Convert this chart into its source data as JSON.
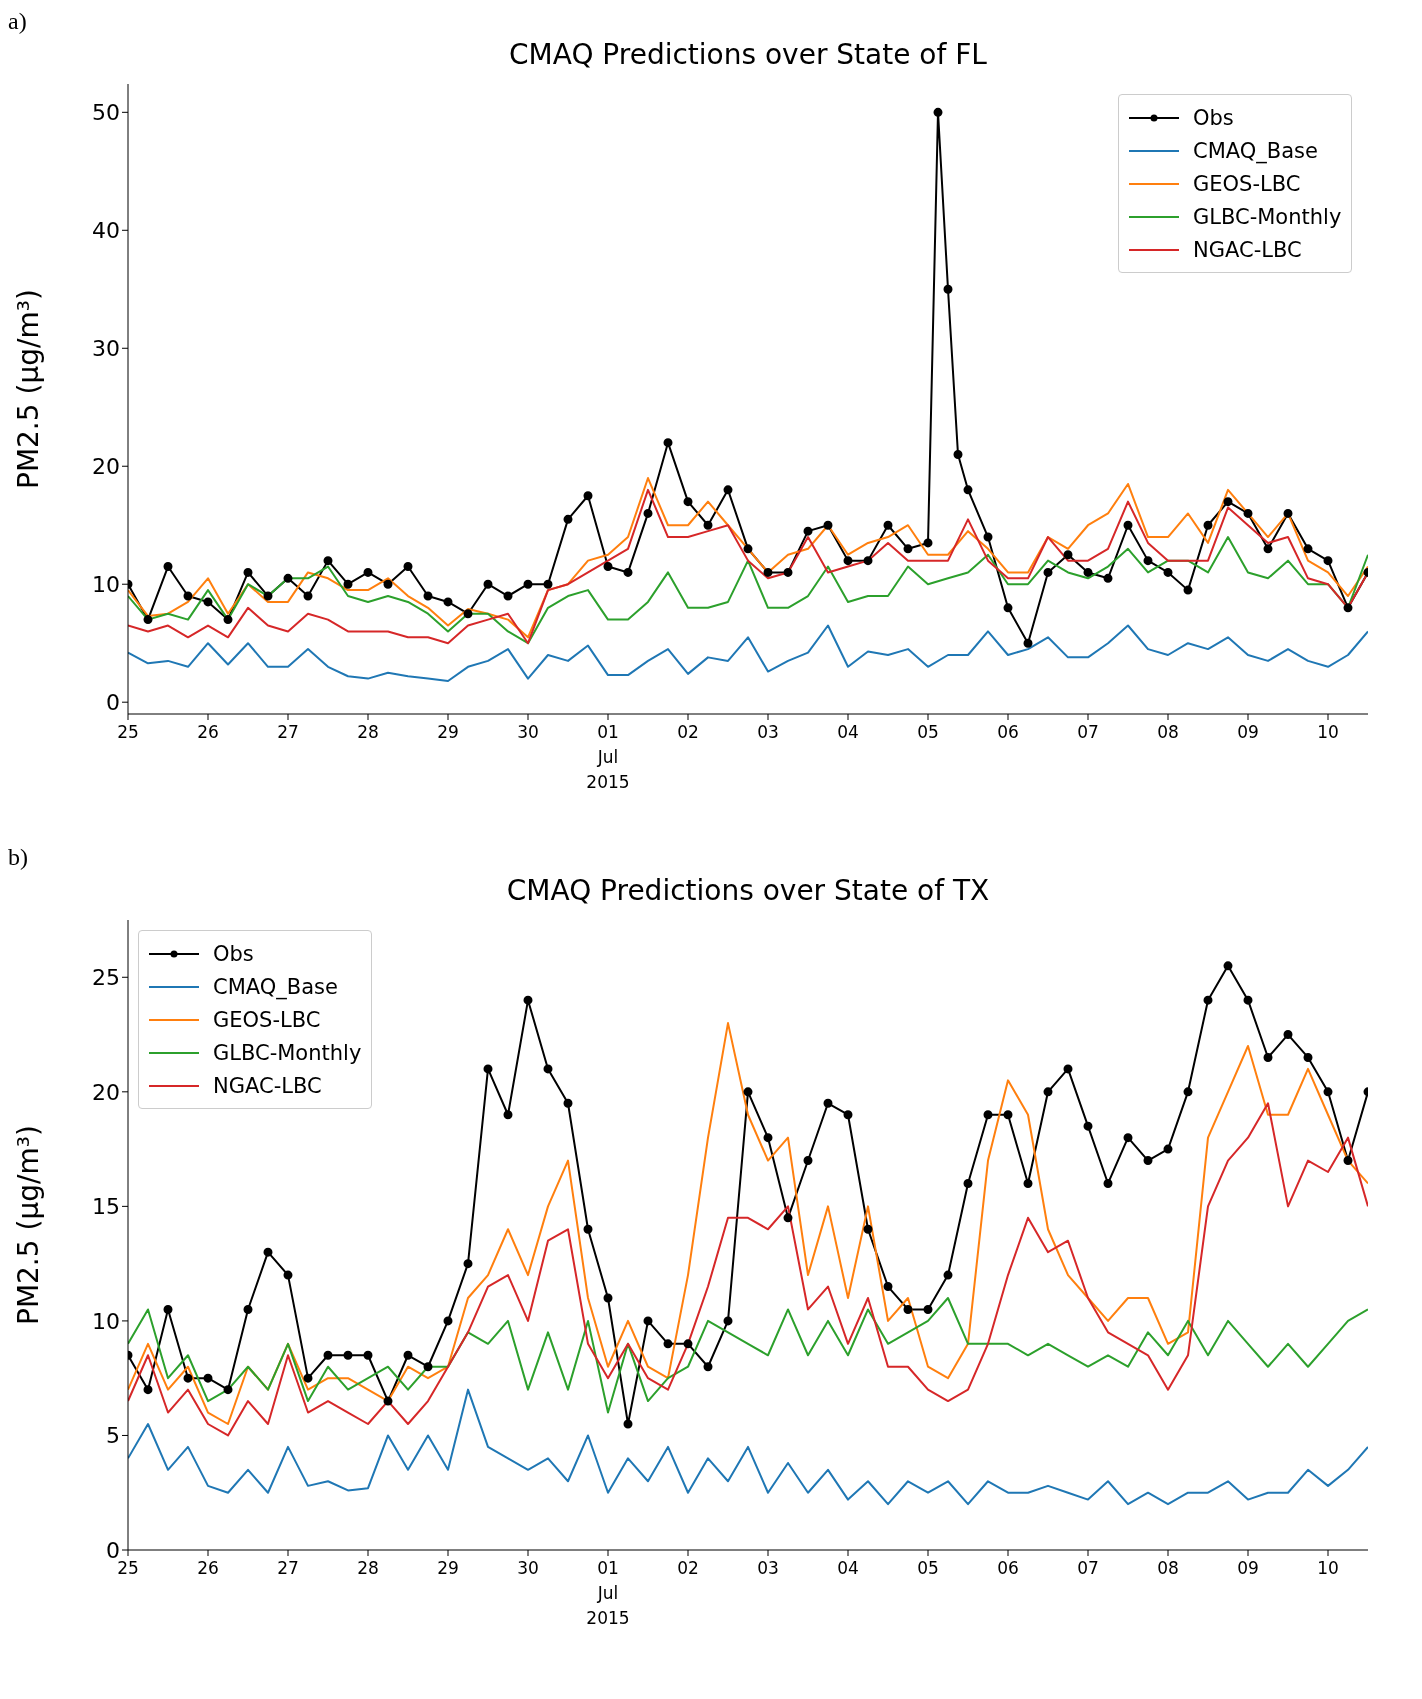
{
  "chart_data": [
    {
      "type": "line",
      "title": "CMAQ Predictions over State of FL",
      "ylabel": "PM2.5 (μg/m³)",
      "annotations": [
        "a)"
      ],
      "legend": "top right",
      "grid": false,
      "xlim": [
        "2015-06-25T00:00",
        "2015-07-10T12:00"
      ],
      "ylim": [
        -1,
        52.4
      ],
      "yticks": [
        0,
        10,
        20,
        30,
        40,
        50
      ],
      "xticks": [
        {
          "value": "2015-06-25",
          "label": "25"
        },
        {
          "value": "2015-06-26",
          "label": "26"
        },
        {
          "value": "2015-06-27",
          "label": "27"
        },
        {
          "value": "2015-06-28",
          "label": "28"
        },
        {
          "value": "2015-06-29",
          "label": "29"
        },
        {
          "value": "2015-06-30",
          "label": "30"
        },
        {
          "value": "2015-07-01",
          "label": "01\nJul\n2015"
        },
        {
          "value": "2015-07-02",
          "label": "02"
        },
        {
          "value": "2015-07-03",
          "label": "03"
        },
        {
          "value": "2015-07-04",
          "label": "04"
        },
        {
          "value": "2015-07-05",
          "label": "05"
        },
        {
          "value": "2015-07-06",
          "label": "06"
        },
        {
          "value": "2015-07-07",
          "label": "07"
        },
        {
          "value": "2015-07-08",
          "label": "08"
        },
        {
          "value": "2015-07-09",
          "label": "09"
        },
        {
          "value": "2015-07-10",
          "label": "10"
        }
      ],
      "x": [
        "2015-06-25T00:00",
        "2015-06-25T06:00",
        "2015-06-25T12:00",
        "2015-06-25T18:00",
        "2015-06-26T00:00",
        "2015-06-26T06:00",
        "2015-06-26T12:00",
        "2015-06-26T18:00",
        "2015-06-27T00:00",
        "2015-06-27T06:00",
        "2015-06-27T12:00",
        "2015-06-27T18:00",
        "2015-06-28T00:00",
        "2015-06-28T06:00",
        "2015-06-28T12:00",
        "2015-06-28T18:00",
        "2015-06-29T00:00",
        "2015-06-29T06:00",
        "2015-06-29T12:00",
        "2015-06-29T18:00",
        "2015-06-30T00:00",
        "2015-06-30T06:00",
        "2015-06-30T12:00",
        "2015-06-30T18:00",
        "2015-07-01T00:00",
        "2015-07-01T06:00",
        "2015-07-01T12:00",
        "2015-07-01T18:00",
        "2015-07-02T00:00",
        "2015-07-02T06:00",
        "2015-07-02T12:00",
        "2015-07-02T18:00",
        "2015-07-03T00:00",
        "2015-07-03T06:00",
        "2015-07-03T12:00",
        "2015-07-03T18:00",
        "2015-07-04T00:00",
        "2015-07-04T06:00",
        "2015-07-04T12:00",
        "2015-07-04T18:00",
        "2015-07-05T00:00",
        "2015-07-05T06:00",
        "2015-07-05T12:00",
        "2015-07-05T18:00",
        "2015-07-06T00:00",
        "2015-07-06T06:00",
        "2015-07-06T12:00",
        "2015-07-06T18:00",
        "2015-07-07T00:00",
        "2015-07-07T06:00",
        "2015-07-07T12:00",
        "2015-07-07T18:00",
        "2015-07-08T00:00",
        "2015-07-08T06:00",
        "2015-07-08T12:00",
        "2015-07-08T18:00",
        "2015-07-09T00:00",
        "2015-07-09T06:00",
        "2015-07-09T12:00",
        "2015-07-09T18:00",
        "2015-07-10T00:00",
        "2015-07-10T06:00",
        "2015-07-10T12:00"
      ],
      "series": [
        {
          "name": "Obs",
          "color": "#000000",
          "marker": "circle",
          "x": [
            "2015-06-25T00:00",
            "2015-06-25T06:00",
            "2015-06-25T12:00",
            "2015-06-25T18:00",
            "2015-06-26T00:00",
            "2015-06-26T06:00",
            "2015-06-26T12:00",
            "2015-06-26T18:00",
            "2015-06-27T00:00",
            "2015-06-27T06:00",
            "2015-06-27T12:00",
            "2015-06-27T18:00",
            "2015-06-28T00:00",
            "2015-06-28T06:00",
            "2015-06-28T12:00",
            "2015-06-28T18:00",
            "2015-06-29T00:00",
            "2015-06-29T06:00",
            "2015-06-29T12:00",
            "2015-06-29T18:00",
            "2015-06-30T00:00",
            "2015-06-30T06:00",
            "2015-06-30T12:00",
            "2015-06-30T18:00",
            "2015-07-01T00:00",
            "2015-07-01T06:00",
            "2015-07-01T12:00",
            "2015-07-01T18:00",
            "2015-07-02T00:00",
            "2015-07-02T06:00",
            "2015-07-02T12:00",
            "2015-07-02T18:00",
            "2015-07-03T00:00",
            "2015-07-03T06:00",
            "2015-07-03T12:00",
            "2015-07-03T18:00",
            "2015-07-04T00:00",
            "2015-07-04T06:00",
            "2015-07-04T12:00",
            "2015-07-04T18:00",
            "2015-07-05T00:00",
            "2015-07-05T03:00",
            "2015-07-05T06:00",
            "2015-07-05T09:00",
            "2015-07-05T12:00",
            "2015-07-05T18:00",
            "2015-07-06T00:00",
            "2015-07-06T06:00",
            "2015-07-06T12:00",
            "2015-07-06T18:00",
            "2015-07-07T00:00",
            "2015-07-07T06:00",
            "2015-07-07T12:00",
            "2015-07-07T18:00",
            "2015-07-08T00:00",
            "2015-07-08T06:00",
            "2015-07-08T12:00",
            "2015-07-08T18:00",
            "2015-07-09T00:00",
            "2015-07-09T06:00",
            "2015-07-09T12:00",
            "2015-07-09T18:00",
            "2015-07-10T00:00",
            "2015-07-10T06:00",
            "2015-07-10T12:00"
          ],
          "values": [
            10,
            7,
            11.5,
            9,
            8.5,
            7,
            11,
            9,
            10.5,
            9,
            12,
            10,
            11,
            10,
            11.5,
            9,
            8.5,
            7.5,
            10,
            9,
            10,
            10,
            15.5,
            17.5,
            11.5,
            11,
            16,
            22,
            17,
            15,
            18,
            13,
            11,
            11,
            14.5,
            15,
            12,
            12,
            15,
            13,
            13.5,
            50,
            35,
            21,
            18,
            14,
            8,
            5,
            11,
            12.5,
            11,
            10.5,
            15,
            12,
            11,
            9.5,
            15,
            17,
            16,
            13,
            16,
            13,
            12,
            8,
            11
          ]
        },
        {
          "name": "CMAQ_Base",
          "color": "#1f77b4",
          "marker": "none",
          "values": [
            4.2,
            3.3,
            3.5,
            3,
            5,
            3.2,
            5,
            3,
            3,
            4.5,
            3,
            2.2,
            2,
            2.5,
            2.2,
            2,
            1.8,
            3,
            3.5,
            4.5,
            2,
            4,
            3.5,
            4.8,
            2.3,
            2.3,
            3.5,
            4.5,
            2.4,
            3.8,
            3.5,
            5.5,
            2.6,
            3.5,
            4.2,
            6.5,
            3,
            4.3,
            4,
            4.5,
            3,
            4,
            4,
            6,
            4,
            4.5,
            5.5,
            3.8,
            3.8,
            5,
            6.5,
            4.5,
            4,
            5,
            4.5,
            5.5,
            4,
            3.5,
            4.5,
            3.5,
            3,
            4,
            6
          ]
        },
        {
          "name": "GEOS-LBC",
          "color": "#ff7f0e",
          "marker": "none",
          "values": [
            9.5,
            7.3,
            7.5,
            8.5,
            10.5,
            7.5,
            10,
            8.5,
            8.5,
            11,
            10.5,
            9.5,
            9.5,
            10.5,
            9,
            8,
            6.5,
            7.9,
            7.5,
            7,
            5.5,
            9.5,
            10,
            12,
            12.5,
            14,
            19,
            15,
            15,
            17,
            15,
            13,
            11,
            12.5,
            13,
            15,
            12.5,
            13.5,
            14,
            15,
            12.5,
            12.5,
            14.5,
            13,
            11,
            11,
            14,
            13,
            15,
            16,
            18.5,
            14,
            14,
            16,
            13.5,
            18,
            16,
            14,
            16,
            12,
            11,
            9,
            11.5
          ]
        },
        {
          "name": "GLBC-Monthly",
          "color": "#2ca02c",
          "marker": "none",
          "values": [
            9,
            7,
            7.5,
            7,
            9.5,
            7,
            10,
            9,
            10.5,
            10.5,
            11.5,
            9,
            8.5,
            9,
            8.5,
            7.5,
            6,
            7.5,
            7.5,
            6,
            5,
            8,
            9,
            9.5,
            7,
            7,
            8.5,
            11,
            8,
            8,
            8.5,
            12,
            8,
            8,
            9,
            11.5,
            8.5,
            9,
            9,
            11.5,
            10,
            10.5,
            11,
            12.5,
            10,
            10,
            12,
            11,
            10.5,
            11.5,
            13,
            11,
            12,
            12,
            11,
            14,
            11,
            10.5,
            12,
            10,
            10,
            8,
            12.5
          ]
        },
        {
          "name": "NGAC-LBC",
          "color": "#d62728",
          "marker": "none",
          "values": [
            6.5,
            6,
            6.5,
            5.5,
            6.5,
            5.5,
            8,
            6.5,
            6,
            7.5,
            7,
            6,
            6,
            6,
            5.5,
            5.5,
            5,
            6.5,
            7,
            7.5,
            5,
            9.5,
            10,
            11,
            12,
            13,
            18,
            14,
            14,
            14.5,
            15,
            12,
            10.5,
            11,
            14,
            11,
            11.5,
            12,
            13.5,
            12,
            12,
            12,
            15.5,
            12,
            10.5,
            10.5,
            14,
            12,
            12,
            13,
            17,
            13.5,
            12,
            12,
            12,
            16.5,
            15,
            13.5,
            14,
            10.5,
            10,
            8,
            11
          ]
        }
      ]
    },
    {
      "type": "line",
      "title": "CMAQ Predictions over State of TX",
      "ylabel": "PM2.5 (μg/m³)",
      "annotations": [
        "b)"
      ],
      "legend": "top left",
      "grid": false,
      "xlim": [
        "2015-06-25T00:00",
        "2015-07-10T12:00"
      ],
      "ylim": [
        0,
        27.5
      ],
      "yticks": [
        0,
        5,
        10,
        15,
        20,
        25
      ],
      "xticks": [
        {
          "value": "2015-06-25",
          "label": "25"
        },
        {
          "value": "2015-06-26",
          "label": "26"
        },
        {
          "value": "2015-06-27",
          "label": "27"
        },
        {
          "value": "2015-06-28",
          "label": "28"
        },
        {
          "value": "2015-06-29",
          "label": "29"
        },
        {
          "value": "2015-06-30",
          "label": "30"
        },
        {
          "value": "2015-07-01",
          "label": "01\nJul\n2015"
        },
        {
          "value": "2015-07-02",
          "label": "02"
        },
        {
          "value": "2015-07-03",
          "label": "03"
        },
        {
          "value": "2015-07-04",
          "label": "04"
        },
        {
          "value": "2015-07-05",
          "label": "05"
        },
        {
          "value": "2015-07-06",
          "label": "06"
        },
        {
          "value": "2015-07-07",
          "label": "07"
        },
        {
          "value": "2015-07-08",
          "label": "08"
        },
        {
          "value": "2015-07-09",
          "label": "09"
        },
        {
          "value": "2015-07-10",
          "label": "10"
        }
      ],
      "x": [
        "2015-06-25T00:00",
        "2015-06-25T06:00",
        "2015-06-25T12:00",
        "2015-06-25T18:00",
        "2015-06-26T00:00",
        "2015-06-26T06:00",
        "2015-06-26T12:00",
        "2015-06-26T18:00",
        "2015-06-27T00:00",
        "2015-06-27T06:00",
        "2015-06-27T12:00",
        "2015-06-27T18:00",
        "2015-06-28T00:00",
        "2015-06-28T06:00",
        "2015-06-28T12:00",
        "2015-06-28T18:00",
        "2015-06-29T00:00",
        "2015-06-29T06:00",
        "2015-06-29T12:00",
        "2015-06-29T18:00",
        "2015-06-30T00:00",
        "2015-06-30T06:00",
        "2015-06-30T12:00",
        "2015-06-30T18:00",
        "2015-07-01T00:00",
        "2015-07-01T06:00",
        "2015-07-01T12:00",
        "2015-07-01T18:00",
        "2015-07-02T00:00",
        "2015-07-02T06:00",
        "2015-07-02T12:00",
        "2015-07-02T18:00",
        "2015-07-03T00:00",
        "2015-07-03T06:00",
        "2015-07-03T12:00",
        "2015-07-03T18:00",
        "2015-07-04T00:00",
        "2015-07-04T06:00",
        "2015-07-04T12:00",
        "2015-07-04T18:00",
        "2015-07-05T00:00",
        "2015-07-05T06:00",
        "2015-07-05T12:00",
        "2015-07-05T18:00",
        "2015-07-06T00:00",
        "2015-07-06T06:00",
        "2015-07-06T12:00",
        "2015-07-06T18:00",
        "2015-07-07T00:00",
        "2015-07-07T06:00",
        "2015-07-07T12:00",
        "2015-07-07T18:00",
        "2015-07-08T00:00",
        "2015-07-08T06:00",
        "2015-07-08T12:00",
        "2015-07-08T18:00",
        "2015-07-09T00:00",
        "2015-07-09T06:00",
        "2015-07-09T12:00",
        "2015-07-09T18:00",
        "2015-07-10T00:00",
        "2015-07-10T06:00",
        "2015-07-10T12:00"
      ],
      "series": [
        {
          "name": "Obs",
          "color": "#000000",
          "marker": "circle",
          "values": [
            8.5,
            7,
            10.5,
            7.5,
            7.5,
            7,
            10.5,
            13,
            12,
            7.5,
            8.5,
            8.5,
            8.5,
            6.5,
            8.5,
            8,
            10,
            12.5,
            21,
            19,
            24,
            21,
            19.5,
            14,
            11,
            5.5,
            10,
            9,
            9,
            8,
            10,
            20,
            18,
            14.5,
            17,
            19.5,
            19,
            14,
            11.5,
            10.5,
            10.5,
            12,
            16,
            19,
            19,
            16,
            20,
            21,
            18.5,
            16,
            18,
            17,
            17.5,
            20,
            24,
            25.5,
            24,
            21.5,
            22.5,
            21.5,
            20,
            17,
            20
          ]
        },
        {
          "name": "CMAQ_Base",
          "color": "#1f77b4",
          "marker": "none",
          "values": [
            4,
            5.5,
            3.5,
            4.5,
            2.8,
            2.5,
            3.5,
            2.5,
            4.5,
            2.8,
            3,
            2.6,
            2.7,
            5,
            3.5,
            5,
            3.5,
            7,
            4.5,
            4,
            3.5,
            4,
            3,
            5,
            2.5,
            4,
            3,
            4.5,
            2.5,
            4,
            3,
            4.5,
            2.5,
            3.8,
            2.5,
            3.5,
            2.2,
            3,
            2,
            3,
            2.5,
            3,
            2,
            3,
            2.5,
            2.5,
            2.8,
            2.5,
            2.2,
            3,
            2,
            2.5,
            2,
            2.5,
            2.5,
            3,
            2.2,
            2.5,
            2.5,
            3.5,
            2.8,
            3.5,
            4.5
          ]
        },
        {
          "name": "GEOS-LBC",
          "color": "#ff7f0e",
          "marker": "none",
          "values": [
            7,
            9,
            7,
            8,
            6,
            5.5,
            8,
            7,
            9,
            7,
            7.5,
            7.5,
            7,
            6.5,
            8,
            7.5,
            8,
            11,
            12,
            14,
            12,
            15,
            17,
            11,
            8,
            10,
            8,
            7.5,
            12,
            18,
            23,
            19,
            17,
            18,
            12,
            15,
            11,
            15,
            10,
            11,
            8,
            7.5,
            9,
            17,
            20.5,
            19,
            14,
            12,
            11,
            10,
            11,
            11,
            9,
            9.5,
            18,
            20,
            22,
            19,
            19,
            21,
            19,
            17,
            16
          ]
        },
        {
          "name": "GLBC-Monthly",
          "color": "#2ca02c",
          "marker": "none",
          "values": [
            9,
            10.5,
            7.5,
            8.5,
            6.5,
            7,
            8,
            7,
            9,
            6.5,
            8,
            7,
            7.5,
            8,
            7,
            8,
            8,
            9.5,
            9,
            10,
            7,
            9.5,
            7,
            10,
            6,
            9,
            6.5,
            7.5,
            8,
            10,
            9.5,
            9,
            8.5,
            10.5,
            8.5,
            10,
            8.5,
            10.5,
            9,
            9.5,
            10,
            11,
            9,
            9,
            9,
            8.5,
            9,
            8.5,
            8,
            8.5,
            8,
            9.5,
            8.5,
            10,
            8.5,
            10,
            9,
            8,
            9,
            8,
            9,
            10,
            10.5
          ]
        },
        {
          "name": "NGAC-LBC",
          "color": "#d62728",
          "marker": "none",
          "values": [
            6.5,
            8.5,
            6,
            7,
            5.5,
            5,
            6.5,
            5.5,
            8.5,
            6,
            6.5,
            6,
            5.5,
            6.5,
            5.5,
            6.5,
            8,
            9.5,
            11.5,
            12,
            10,
            13.5,
            14,
            9,
            7.5,
            9,
            7.5,
            7,
            9,
            11.5,
            14.5,
            14.5,
            14,
            15,
            10.5,
            11.5,
            9,
            11,
            8,
            8,
            7,
            6.5,
            7,
            9,
            12,
            14.5,
            13,
            13.5,
            11,
            9.5,
            9,
            8.5,
            7,
            8.5,
            15,
            17,
            18,
            19.5,
            15,
            17,
            16.5,
            18,
            15
          ]
        }
      ]
    }
  ]
}
